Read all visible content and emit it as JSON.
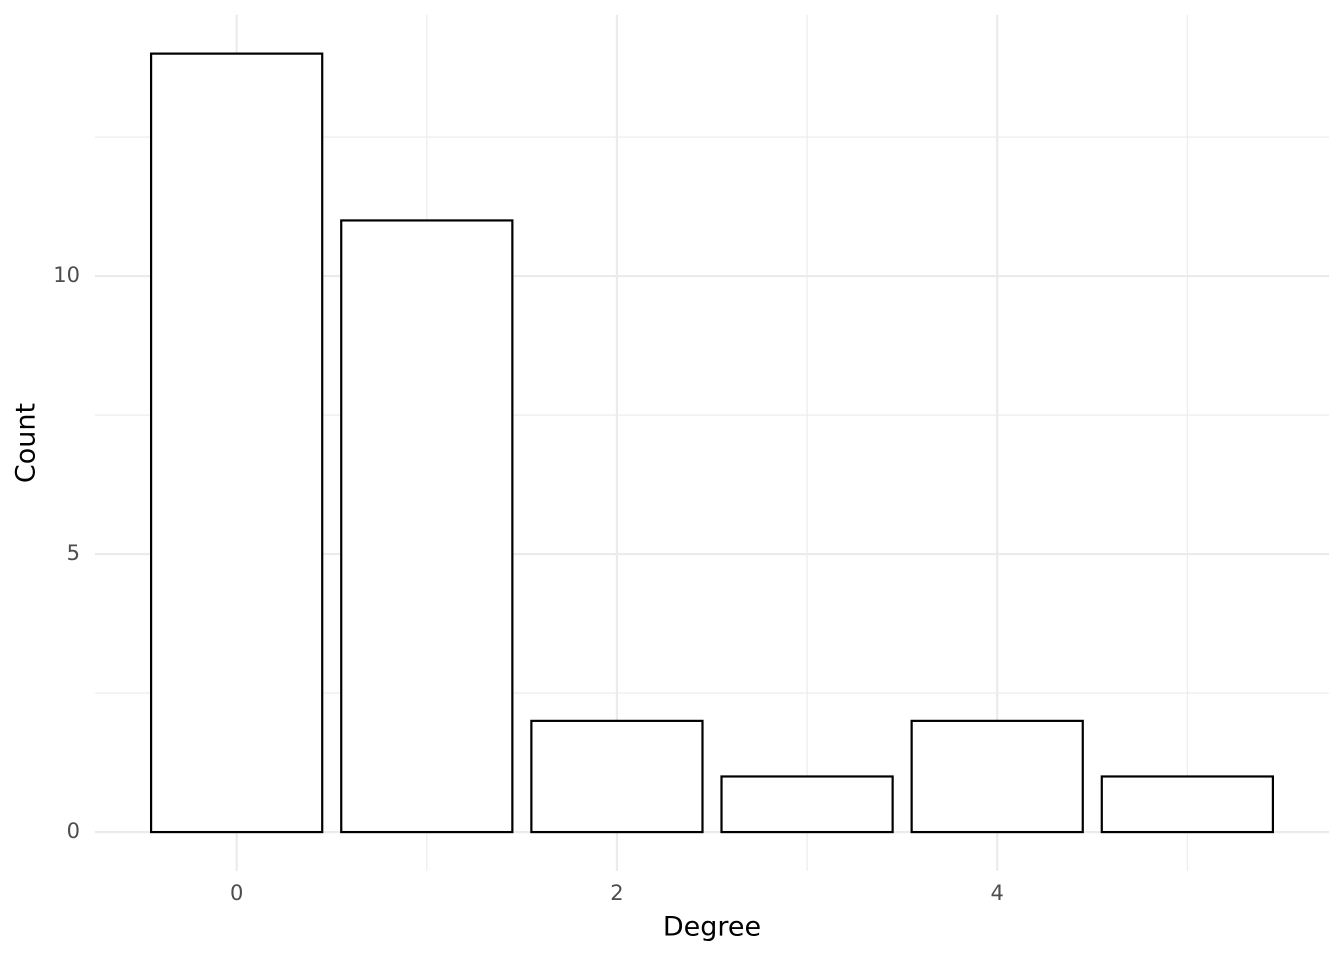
{
  "chart_data": {
    "type": "bar",
    "x_label": "Degree",
    "y_label": "Count",
    "x": [
      0,
      1,
      2,
      3,
      4,
      5
    ],
    "values": [
      14,
      11,
      2,
      1,
      2,
      1
    ],
    "color": "#ffffff",
    "edge_color": "#000000",
    "bar_width": 0.9,
    "xlim": [
      -0.745,
      5.745
    ],
    "xticks": [
      0,
      2,
      4
    ],
    "x_minor_breaks": [
      1,
      3,
      5
    ],
    "ylim": [
      -0.7,
      14.7
    ],
    "yticks": [
      0,
      5,
      10
    ],
    "y_minor_breaks": [
      2.5,
      7.5,
      12.5
    ],
    "grid": true
  }
}
